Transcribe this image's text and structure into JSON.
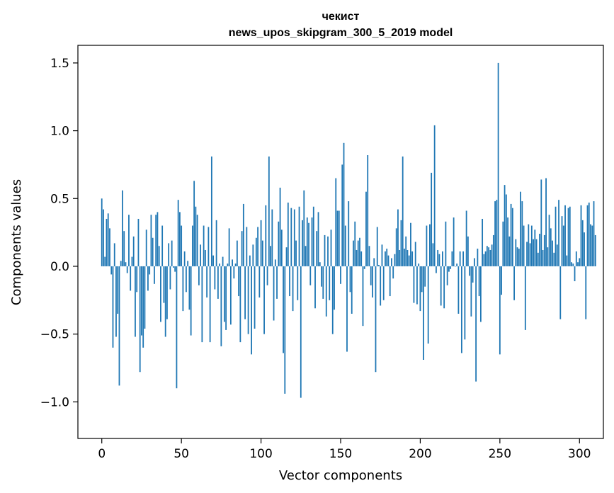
{
  "chart_data": {
    "type": "bar",
    "title_line1": "чекист",
    "title_line2": "news_upos_skipgram_300_5_2019 model",
    "xlabel": "Vector components",
    "ylabel": "Components values",
    "xlim": [
      -15,
      315
    ],
    "ylim": [
      -1.27,
      1.63
    ],
    "xticks": [
      0,
      50,
      100,
      150,
      200,
      250,
      300
    ],
    "yticks": [
      -1.0,
      -0.5,
      0.0,
      0.5,
      1.0,
      1.5
    ],
    "xtick_labels": [
      "0",
      "50",
      "100",
      "150",
      "200",
      "250",
      "300"
    ],
    "ytick_labels": [
      "−1.0",
      "−0.5",
      "0.0",
      "0.5",
      "1.0",
      "1.5"
    ],
    "bar_color": "#1f77b4",
    "values": [
      0.5,
      0.42,
      0.07,
      0.35,
      0.39,
      0.28,
      -0.06,
      -0.6,
      0.17,
      -0.52,
      -0.35,
      -0.88,
      0.04,
      0.56,
      0.26,
      0.03,
      -0.05,
      0.38,
      -0.18,
      0.07,
      0.22,
      -0.52,
      -0.19,
      0.35,
      -0.78,
      -0.51,
      -0.6,
      -0.46,
      0.27,
      -0.18,
      -0.06,
      0.38,
      0.21,
      -0.13,
      0.38,
      0.4,
      0.15,
      -0.41,
      0.3,
      -0.27,
      -0.52,
      -0.39,
      0.17,
      -0.17,
      0.19,
      -0.01,
      -0.04,
      -0.9,
      0.49,
      0.4,
      0.3,
      -0.33,
      0.11,
      -0.19,
      0.04,
      -0.32,
      -0.51,
      0.3,
      0.63,
      0.44,
      0.38,
      -0.14,
      0.16,
      -0.56,
      0.3,
      0.12,
      -0.23,
      0.29,
      -0.56,
      0.81,
      0.08,
      -0.17,
      0.34,
      -0.24,
      0.02,
      -0.59,
      0.07,
      -0.41,
      -0.47,
      0.02,
      0.28,
      -0.43,
      0.05,
      -0.09,
      0.02,
      0.19,
      -0.22,
      -0.56,
      0.26,
      0.46,
      -0.39,
      0.29,
      -0.5,
      0.08,
      -0.65,
      0.16,
      -0.46,
      0.21,
      0.29,
      -0.23,
      0.34,
      0.19,
      -0.5,
      0.45,
      -0.14,
      0.81,
      0.15,
      0.42,
      -0.4,
      0.05,
      -0.24,
      0.33,
      0.58,
      0.27,
      -0.64,
      -0.94,
      0.14,
      0.47,
      -0.22,
      0.43,
      -0.33,
      0.42,
      0.19,
      -0.25,
      0.44,
      -0.97,
      0.34,
      0.56,
      0.15,
      0.36,
      0.32,
      -0.14,
      0.36,
      0.44,
      -0.31,
      0.26,
      0.4,
      0.03,
      -0.15,
      -0.24,
      0.23,
      -0.37,
      0.22,
      -0.25,
      0.27,
      -0.5,
      -0.32,
      0.65,
      0.41,
      0.41,
      -0.13,
      0.75,
      0.91,
      0.3,
      -0.63,
      0.48,
      -0.19,
      -0.35,
      0.19,
      0.33,
      0.12,
      0.19,
      0.21,
      0.11,
      -0.44,
      -0.02,
      0.55,
      0.82,
      0.15,
      -0.14,
      -0.23,
      0.06,
      -0.78,
      0.29,
      0.01,
      -0.29,
      0.16,
      -0.25,
      0.11,
      0.13,
      0.08,
      -0.22,
      0.06,
      -0.09,
      0.09,
      0.28,
      0.42,
      0.12,
      0.34,
      0.81,
      0.13,
      0.22,
      0.12,
      0.08,
      0.32,
      0.11,
      -0.27,
      0.18,
      -0.28,
      0.02,
      -0.33,
      -0.19,
      -0.69,
      -0.15,
      0.3,
      -0.57,
      0.31,
      0.69,
      0.17,
      1.04,
      -0.05,
      0.12,
      0.09,
      -0.29,
      0.11,
      -0.31,
      0.33,
      -0.14,
      -0.04,
      -0.02,
      0.11,
      0.36,
      0.0,
      0.02,
      -0.35,
      0.11,
      -0.64,
      0.11,
      -0.54,
      0.41,
      0.22,
      -0.07,
      -0.37,
      -0.12,
      0.06,
      -0.85,
      0.13,
      -0.22,
      -0.41,
      0.35,
      0.09,
      0.11,
      0.15,
      0.14,
      0.12,
      0.16,
      0.23,
      0.48,
      0.49,
      1.5,
      -0.65,
      -0.21,
      0.33,
      0.6,
      0.53,
      0.36,
      0.22,
      0.46,
      0.43,
      -0.25,
      0.2,
      0.14,
      0.13,
      0.55,
      0.48,
      0.3,
      -0.47,
      0.18,
      0.31,
      0.17,
      0.3,
      0.2,
      0.27,
      0.2,
      0.1,
      0.24,
      0.64,
      0.12,
      0.23,
      0.65,
      0.14,
      0.38,
      0.28,
      0.19,
      0.1,
      0.44,
      0.16,
      0.49,
      -0.39,
      0.37,
      0.3,
      0.45,
      0.08,
      0.43,
      0.44,
      0.03,
      0.02,
      -0.11,
      0.11,
      0.03,
      0.06,
      0.45,
      0.34,
      0.25,
      -0.39,
      0.45,
      0.47,
      0.31,
      0.3,
      0.48,
      0.23
    ]
  }
}
